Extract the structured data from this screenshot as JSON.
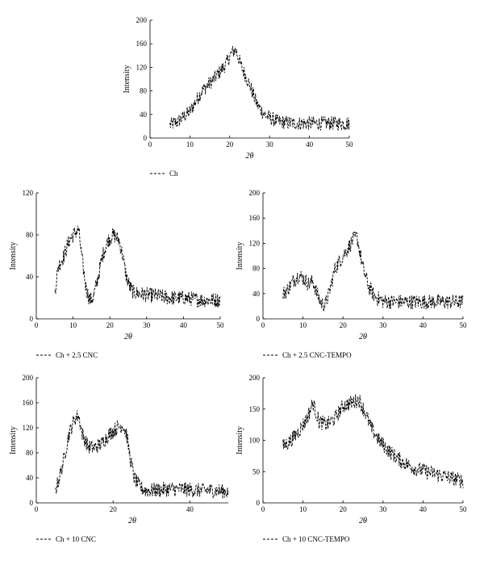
{
  "chart_data": [
    {
      "type": "line",
      "xlabel": "2θ",
      "ylabel": "Intensity",
      "xlim": [
        0,
        50
      ],
      "ylim": [
        0,
        200
      ],
      "xticks": [
        0,
        10,
        20,
        30,
        40,
        50
      ],
      "yticks": [
        0,
        40,
        80,
        120,
        160,
        200
      ],
      "x_tick_labels": [
        "0",
        "10",
        "20",
        "30",
        "40",
        "50"
      ],
      "y_tick_labels": [
        "0",
        "40",
        "80",
        "120",
        "160",
        "200"
      ],
      "legend_position": "bottom-left",
      "grid": false,
      "series": [
        {
          "name": "Ch",
          "color": "#000000",
          "x": [
            5,
            7,
            10,
            13,
            16,
            19,
            20.5,
            21.5,
            23,
            25,
            27,
            29,
            32,
            36,
            40,
            45,
            50
          ],
          "values": [
            22,
            28,
            45,
            80,
            100,
            125,
            145,
            150,
            120,
            90,
            55,
            38,
            28,
            25,
            25,
            25,
            25
          ]
        }
      ]
    },
    {
      "type": "line",
      "xlabel": "2θ",
      "ylabel": "Intensity",
      "xlim": [
        0,
        50
      ],
      "ylim": [
        0,
        120
      ],
      "xticks": [
        0,
        10,
        20,
        30,
        40,
        50
      ],
      "yticks": [
        0,
        40,
        80,
        120
      ],
      "x_tick_labels": [
        "0",
        "10",
        "20",
        "30",
        "40",
        "50"
      ],
      "y_tick_labels": [
        "0",
        "40",
        "80",
        "120"
      ],
      "legend_position": "bottom-left",
      "grid": false,
      "series": [
        {
          "name": "Ch + 2.5 CNC",
          "color": "#000000",
          "x": [
            5,
            6,
            7.5,
            9,
            10.5,
            11.5,
            12.5,
            13.5,
            14.5,
            15.5,
            16.5,
            18,
            19.5,
            21,
            22.5,
            23.5,
            24.5,
            25.5,
            26.5,
            28,
            30,
            33,
            36,
            40,
            45,
            50
          ],
          "values": [
            25,
            50,
            60,
            75,
            82,
            85,
            55,
            30,
            18,
            20,
            35,
            60,
            75,
            80,
            75,
            60,
            40,
            30,
            25,
            24,
            23,
            22,
            20,
            20,
            18,
            18
          ]
        }
      ]
    },
    {
      "type": "line",
      "xlabel": "2θ",
      "ylabel": "Intensity",
      "xlim": [
        0,
        50
      ],
      "ylim": [
        0,
        200
      ],
      "xticks": [
        0,
        10,
        20,
        30,
        40,
        50
      ],
      "yticks": [
        0,
        40,
        80,
        120,
        160,
        200
      ],
      "x_tick_labels": [
        "0",
        "10",
        "20",
        "30",
        "40",
        "50"
      ],
      "y_tick_labels": [
        "0",
        "40",
        "80",
        "120",
        "160",
        "200"
      ],
      "legend_position": "bottom-left",
      "grid": false,
      "series": [
        {
          "name": "Ch + 2.5 CNC-TEMPO",
          "color": "#000000",
          "x": [
            5,
            6,
            7.5,
            9,
            10.5,
            11.5,
            12.5,
            13.5,
            14.5,
            15.5,
            16.5,
            18,
            19.5,
            21,
            22.5,
            23.5,
            25,
            26.5,
            28,
            30,
            33,
            36,
            40,
            45,
            50
          ],
          "values": [
            40,
            45,
            60,
            70,
            62,
            55,
            60,
            40,
            25,
            22,
            40,
            80,
            95,
            110,
            125,
            130,
            80,
            50,
            35,
            28,
            27,
            27,
            27,
            27,
            27
          ]
        }
      ]
    },
    {
      "type": "line",
      "xlabel": "2θ",
      "ylabel": "Intensity",
      "xlim": [
        0,
        50
      ],
      "ylim": [
        0,
        200
      ],
      "xticks": [
        0,
        20,
        40
      ],
      "yticks": [
        0,
        40,
        80,
        120,
        160,
        200
      ],
      "x_tick_labels": [
        "0",
        "20",
        "40"
      ],
      "y_tick_labels": [
        "0",
        "40",
        "80",
        "120",
        "160",
        "200"
      ],
      "legend_position": "bottom-left",
      "grid": false,
      "series": [
        {
          "name": "Ch + 10 CNC",
          "color": "#000000",
          "x": [
            5,
            6,
            7,
            8.5,
            10,
            11,
            12,
            13.5,
            15,
            17,
            19,
            21,
            22.5,
            23.5,
            24.5,
            25.5,
            27,
            28.5,
            30,
            34,
            38,
            42,
            46,
            50
          ],
          "values": [
            20,
            40,
            65,
            110,
            135,
            140,
            110,
            90,
            88,
            95,
            110,
            120,
            125,
            110,
            70,
            40,
            25,
            20,
            20,
            22,
            22,
            20,
            20,
            18
          ]
        }
      ]
    },
    {
      "type": "line",
      "xlabel": "2θ",
      "ylabel": "Intensity",
      "xlim": [
        0,
        50
      ],
      "ylim": [
        0,
        200
      ],
      "xticks": [
        0,
        10,
        20,
        30,
        40,
        50
      ],
      "yticks": [
        0,
        50,
        100,
        150,
        200
      ],
      "x_tick_labels": [
        "0",
        "10",
        "20",
        "30",
        "40",
        "50"
      ],
      "y_tick_labels": [
        "0",
        "50",
        "100",
        "150",
        "200"
      ],
      "legend_position": "bottom-left",
      "grid": false,
      "series": [
        {
          "name": "Ch + 10 CNC-TEMPO",
          "color": "#000000",
          "x": [
            5,
            7,
            9,
            11,
            12.5,
            14,
            16,
            18,
            20,
            22,
            24,
            25.5,
            27,
            29,
            32,
            35,
            38,
            41,
            44,
            47,
            50
          ],
          "values": [
            90,
            100,
            115,
            135,
            160,
            130,
            125,
            135,
            155,
            160,
            165,
            145,
            120,
            100,
            80,
            65,
            55,
            50,
            45,
            40,
            35
          ]
        }
      ]
    }
  ]
}
